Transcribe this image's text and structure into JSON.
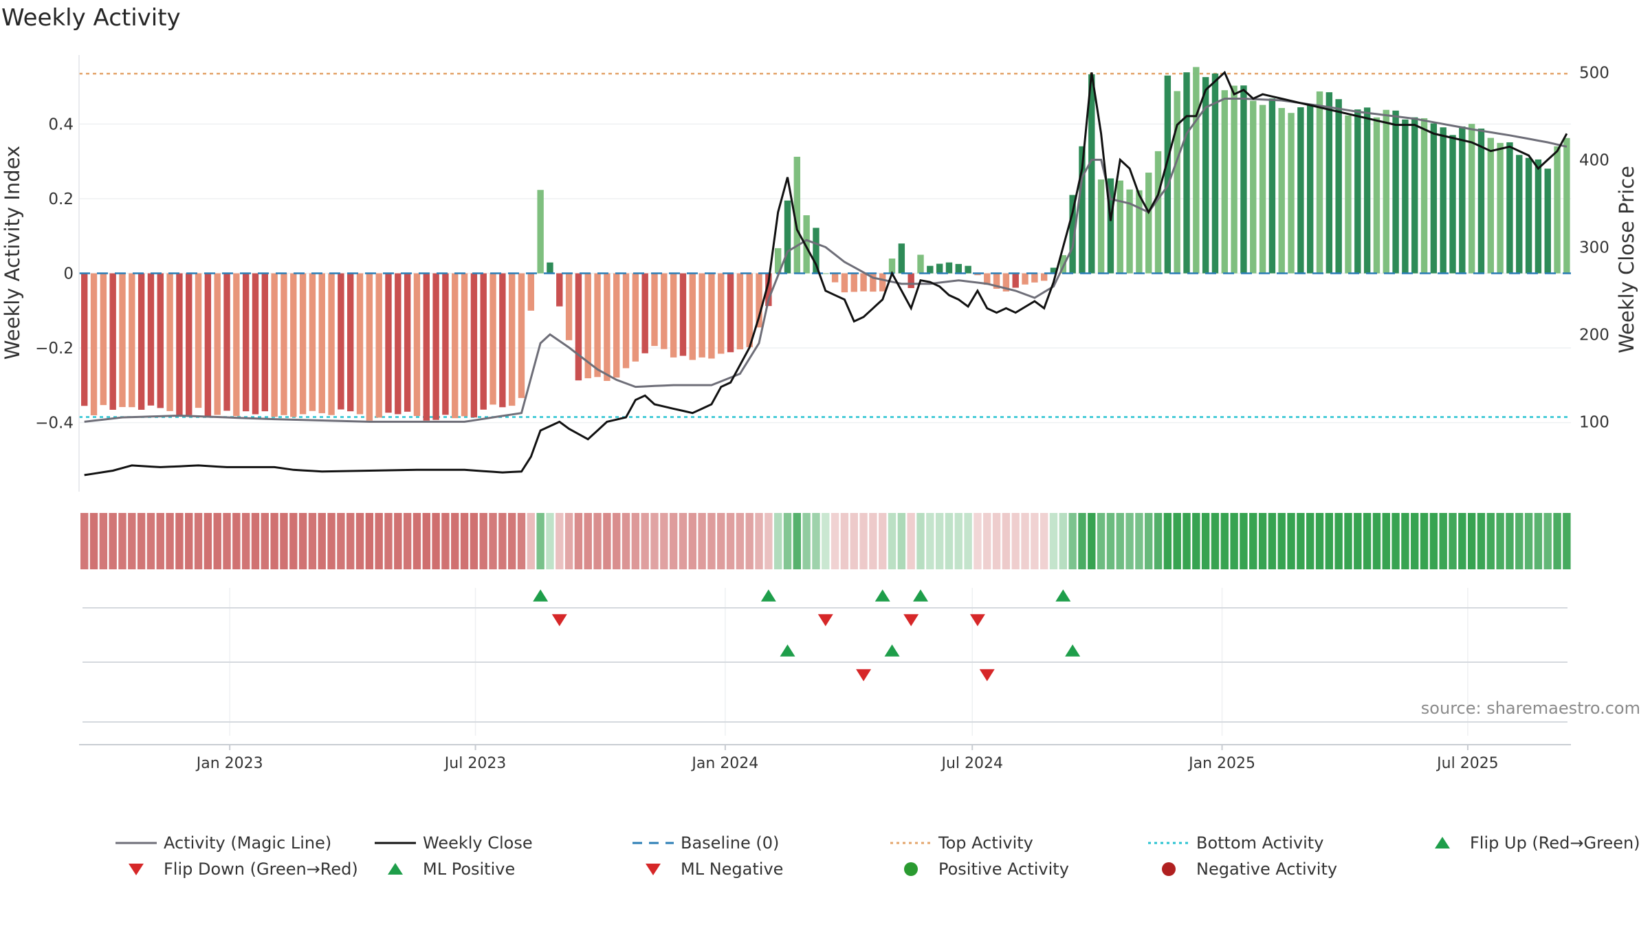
{
  "chart_data": {
    "type": "bar",
    "title": "Weekly Activity",
    "ylabel": "Weekly Activity Index",
    "y2label": "Weekly Close Price",
    "ylim": [
      -0.585,
      0.585
    ],
    "y2lim": [
      20,
      520
    ],
    "yticks": [
      0.4,
      0.2,
      0,
      -0.2,
      -0.4
    ],
    "ytick_labels": [
      "0.4",
      "0.2",
      "0",
      "−0.2",
      "−0.4"
    ],
    "y2ticks": [
      500,
      400,
      300,
      200,
      100
    ],
    "y2tick_labels": [
      "500",
      "400",
      "300",
      "200",
      "100"
    ],
    "x_range": [
      "2022-09-12",
      "2025-09-15"
    ],
    "xticks": [
      "2023-01-01",
      "2023-07-01",
      "2024-01-01",
      "2024-07-01",
      "2025-01-01",
      "2025-07-01"
    ],
    "xtick_labels": [
      "Jan 2023",
      "Jul 2023",
      "Jan 2024",
      "Jul 2024",
      "Jan 2025",
      "Jul 2025"
    ],
    "top_activity": 0.535,
    "bottom_activity": -0.385,
    "baseline": 0,
    "source": "source: sharemaestro.com",
    "start_date": "2022-09-12",
    "weeks": 157,
    "activity_keys": [
      [
        0,
        -0.37
      ],
      [
        5,
        -0.36
      ],
      [
        10,
        -0.37
      ],
      [
        16,
        -0.37
      ],
      [
        22,
        -0.38
      ],
      [
        30,
        -0.38
      ],
      [
        40,
        -0.38
      ],
      [
        46,
        -0.34
      ],
      [
        47,
        -0.1
      ],
      [
        48,
        0.23
      ],
      [
        49,
        0.03
      ],
      [
        50,
        -0.09
      ],
      [
        52,
        -0.28
      ],
      [
        56,
        -0.28
      ],
      [
        60,
        -0.2
      ],
      [
        64,
        -0.24
      ],
      [
        70,
        -0.2
      ],
      [
        72,
        -0.09
      ],
      [
        73,
        0.07
      ],
      [
        74,
        0.2
      ],
      [
        75,
        0.31
      ],
      [
        76,
        0.16
      ],
      [
        77,
        0.12
      ],
      [
        78,
        0.0
      ],
      [
        80,
        -0.05
      ],
      [
        84,
        -0.05
      ],
      [
        85,
        0.04
      ],
      [
        86,
        0.08
      ],
      [
        87,
        -0.04
      ],
      [
        88,
        0.05
      ],
      [
        89,
        0.02
      ],
      [
        91,
        0.03
      ],
      [
        93,
        0.02
      ],
      [
        95,
        -0.03
      ],
      [
        97,
        -0.05
      ],
      [
        99,
        -0.03
      ],
      [
        101,
        -0.02
      ],
      [
        103,
        0.05
      ],
      [
        104,
        0.21
      ],
      [
        105,
        0.33
      ],
      [
        106,
        0.54
      ],
      [
        107,
        0.25
      ],
      [
        108,
        0.25
      ],
      [
        111,
        0.22
      ],
      [
        113,
        0.34
      ],
      [
        114,
        0.53
      ],
      [
        115,
        0.49
      ],
      [
        116,
        0.54
      ],
      [
        118,
        0.53
      ],
      [
        120,
        0.5
      ],
      [
        124,
        0.47
      ],
      [
        128,
        0.43
      ],
      [
        130,
        0.49
      ],
      [
        133,
        0.44
      ],
      [
        136,
        0.43
      ],
      [
        140,
        0.42
      ],
      [
        143,
        0.38
      ],
      [
        146,
        0.39
      ],
      [
        148,
        0.36
      ],
      [
        152,
        0.32
      ],
      [
        154,
        0.28
      ],
      [
        155,
        0.33
      ],
      [
        156,
        0.35
      ]
    ],
    "close_keys": [
      [
        0,
        39
      ],
      [
        3,
        44
      ],
      [
        5,
        50
      ],
      [
        8,
        48
      ],
      [
        12,
        50
      ],
      [
        15,
        48
      ],
      [
        20,
        48
      ],
      [
        22,
        45
      ],
      [
        25,
        43
      ],
      [
        30,
        44
      ],
      [
        35,
        45
      ],
      [
        40,
        45
      ],
      [
        44,
        42
      ],
      [
        46,
        43
      ],
      [
        47,
        60
      ],
      [
        48,
        90
      ],
      [
        49,
        95
      ],
      [
        50,
        100
      ],
      [
        51,
        92
      ],
      [
        53,
        80
      ],
      [
        55,
        100
      ],
      [
        57,
        105
      ],
      [
        58,
        125
      ],
      [
        59,
        130
      ],
      [
        60,
        120
      ],
      [
        62,
        115
      ],
      [
        64,
        110
      ],
      [
        66,
        120
      ],
      [
        67,
        140
      ],
      [
        68,
        145
      ],
      [
        70,
        185
      ],
      [
        71,
        220
      ],
      [
        72,
        260
      ],
      [
        73,
        340
      ],
      [
        74,
        380
      ],
      [
        75,
        320
      ],
      [
        76,
        300
      ],
      [
        77,
        280
      ],
      [
        78,
        250
      ],
      [
        80,
        240
      ],
      [
        81,
        215
      ],
      [
        82,
        220
      ],
      [
        83,
        230
      ],
      [
        84,
        240
      ],
      [
        85,
        270
      ],
      [
        86,
        250
      ],
      [
        87,
        230
      ],
      [
        88,
        262
      ],
      [
        89,
        260
      ],
      [
        90,
        255
      ],
      [
        91,
        245
      ],
      [
        92,
        240
      ],
      [
        93,
        232
      ],
      [
        94,
        250
      ],
      [
        95,
        230
      ],
      [
        96,
        225
      ],
      [
        97,
        230
      ],
      [
        98,
        225
      ],
      [
        100,
        238
      ],
      [
        101,
        230
      ],
      [
        102,
        260
      ],
      [
        103,
        300
      ],
      [
        104,
        340
      ],
      [
        105,
        390
      ],
      [
        106,
        500
      ],
      [
        107,
        430
      ],
      [
        108,
        330
      ],
      [
        109,
        400
      ],
      [
        110,
        390
      ],
      [
        111,
        360
      ],
      [
        112,
        340
      ],
      [
        113,
        360
      ],
      [
        114,
        400
      ],
      [
        115,
        440
      ],
      [
        116,
        450
      ],
      [
        117,
        450
      ],
      [
        118,
        480
      ],
      [
        119,
        490
      ],
      [
        120,
        500
      ],
      [
        121,
        475
      ],
      [
        122,
        480
      ],
      [
        123,
        470
      ],
      [
        124,
        475
      ],
      [
        126,
        470
      ],
      [
        128,
        465
      ],
      [
        130,
        460
      ],
      [
        132,
        455
      ],
      [
        134,
        450
      ],
      [
        136,
        445
      ],
      [
        138,
        440
      ],
      [
        140,
        440
      ],
      [
        142,
        430
      ],
      [
        144,
        425
      ],
      [
        146,
        420
      ],
      [
        148,
        410
      ],
      [
        150,
        415
      ],
      [
        152,
        405
      ],
      [
        153,
        390
      ],
      [
        154,
        400
      ],
      [
        155,
        410
      ],
      [
        156,
        430
      ]
    ],
    "magic_keys": [
      [
        0,
        100
      ],
      [
        4,
        105
      ],
      [
        10,
        107
      ],
      [
        20,
        103
      ],
      [
        30,
        100
      ],
      [
        40,
        100
      ],
      [
        46,
        110
      ],
      [
        47,
        150
      ],
      [
        48,
        190
      ],
      [
        49,
        200
      ],
      [
        51,
        185
      ],
      [
        54,
        160
      ],
      [
        56,
        148
      ],
      [
        58,
        140
      ],
      [
        62,
        142
      ],
      [
        66,
        142
      ],
      [
        69,
        155
      ],
      [
        71,
        190
      ],
      [
        72,
        240
      ],
      [
        74,
        295
      ],
      [
        76,
        308
      ],
      [
        78,
        300
      ],
      [
        80,
        283
      ],
      [
        83,
        265
      ],
      [
        86,
        258
      ],
      [
        89,
        258
      ],
      [
        92,
        262
      ],
      [
        95,
        258
      ],
      [
        98,
        250
      ],
      [
        100,
        242
      ],
      [
        102,
        255
      ],
      [
        104,
        300
      ],
      [
        105,
        380
      ],
      [
        106,
        400
      ],
      [
        107,
        400
      ],
      [
        108,
        355
      ],
      [
        110,
        350
      ],
      [
        112,
        340
      ],
      [
        114,
        370
      ],
      [
        116,
        430
      ],
      [
        118,
        460
      ],
      [
        120,
        470
      ],
      [
        122,
        470
      ],
      [
        126,
        468
      ],
      [
        130,
        462
      ],
      [
        134,
        455
      ],
      [
        140,
        447
      ],
      [
        146,
        435
      ],
      [
        150,
        428
      ],
      [
        154,
        420
      ],
      [
        156,
        415
      ]
    ],
    "flip_up_weeks": [
      48,
      72,
      84,
      88,
      103
    ],
    "flip_down_weeks": [
      50,
      78,
      87,
      94
    ],
    "ml_positive_weeks": [
      74,
      85,
      104
    ],
    "ml_negative_weeks": [
      82,
      95
    ],
    "legend": [
      {
        "label": "Activity (Magic Line)",
        "kind": "line",
        "color": "#6e6e78",
        "dash": "none"
      },
      {
        "label": "Weekly Close",
        "kind": "line",
        "color": "#111111",
        "dash": "none"
      },
      {
        "label": "Baseline (0)",
        "kind": "line",
        "color": "#2a7db5",
        "dash": "dashed"
      },
      {
        "label": "Top Activity",
        "kind": "line",
        "color": "#e3a46a",
        "dash": "dotted"
      },
      {
        "label": "Bottom Activity",
        "kind": "line",
        "color": "#27c2d0",
        "dash": "dotted"
      },
      {
        "label": "Flip Up (Red→Green)",
        "kind": "tri-up",
        "color": "#1e9e4a"
      },
      {
        "label": "Flip Down (Green→Red)",
        "kind": "tri-down",
        "color": "#d62728"
      },
      {
        "label": "ML Positive",
        "kind": "tri-up",
        "color": "#1e9e4a"
      },
      {
        "label": "ML Negative",
        "kind": "tri-down",
        "color": "#d62728"
      },
      {
        "label": "Positive Activity",
        "kind": "dot",
        "color": "#2a9a30"
      },
      {
        "label": "Negative Activity",
        "kind": "dot",
        "color": "#b02020"
      }
    ],
    "colors": {
      "pos_strong": "#2e8b57",
      "pos_light": "#7fbf7f",
      "neg_strong": "#c95050",
      "neg_light": "#e8957a",
      "top_line": "#e3a46a",
      "bottom_line": "#27c2d0",
      "baseline": "#2a7db5"
    }
  }
}
